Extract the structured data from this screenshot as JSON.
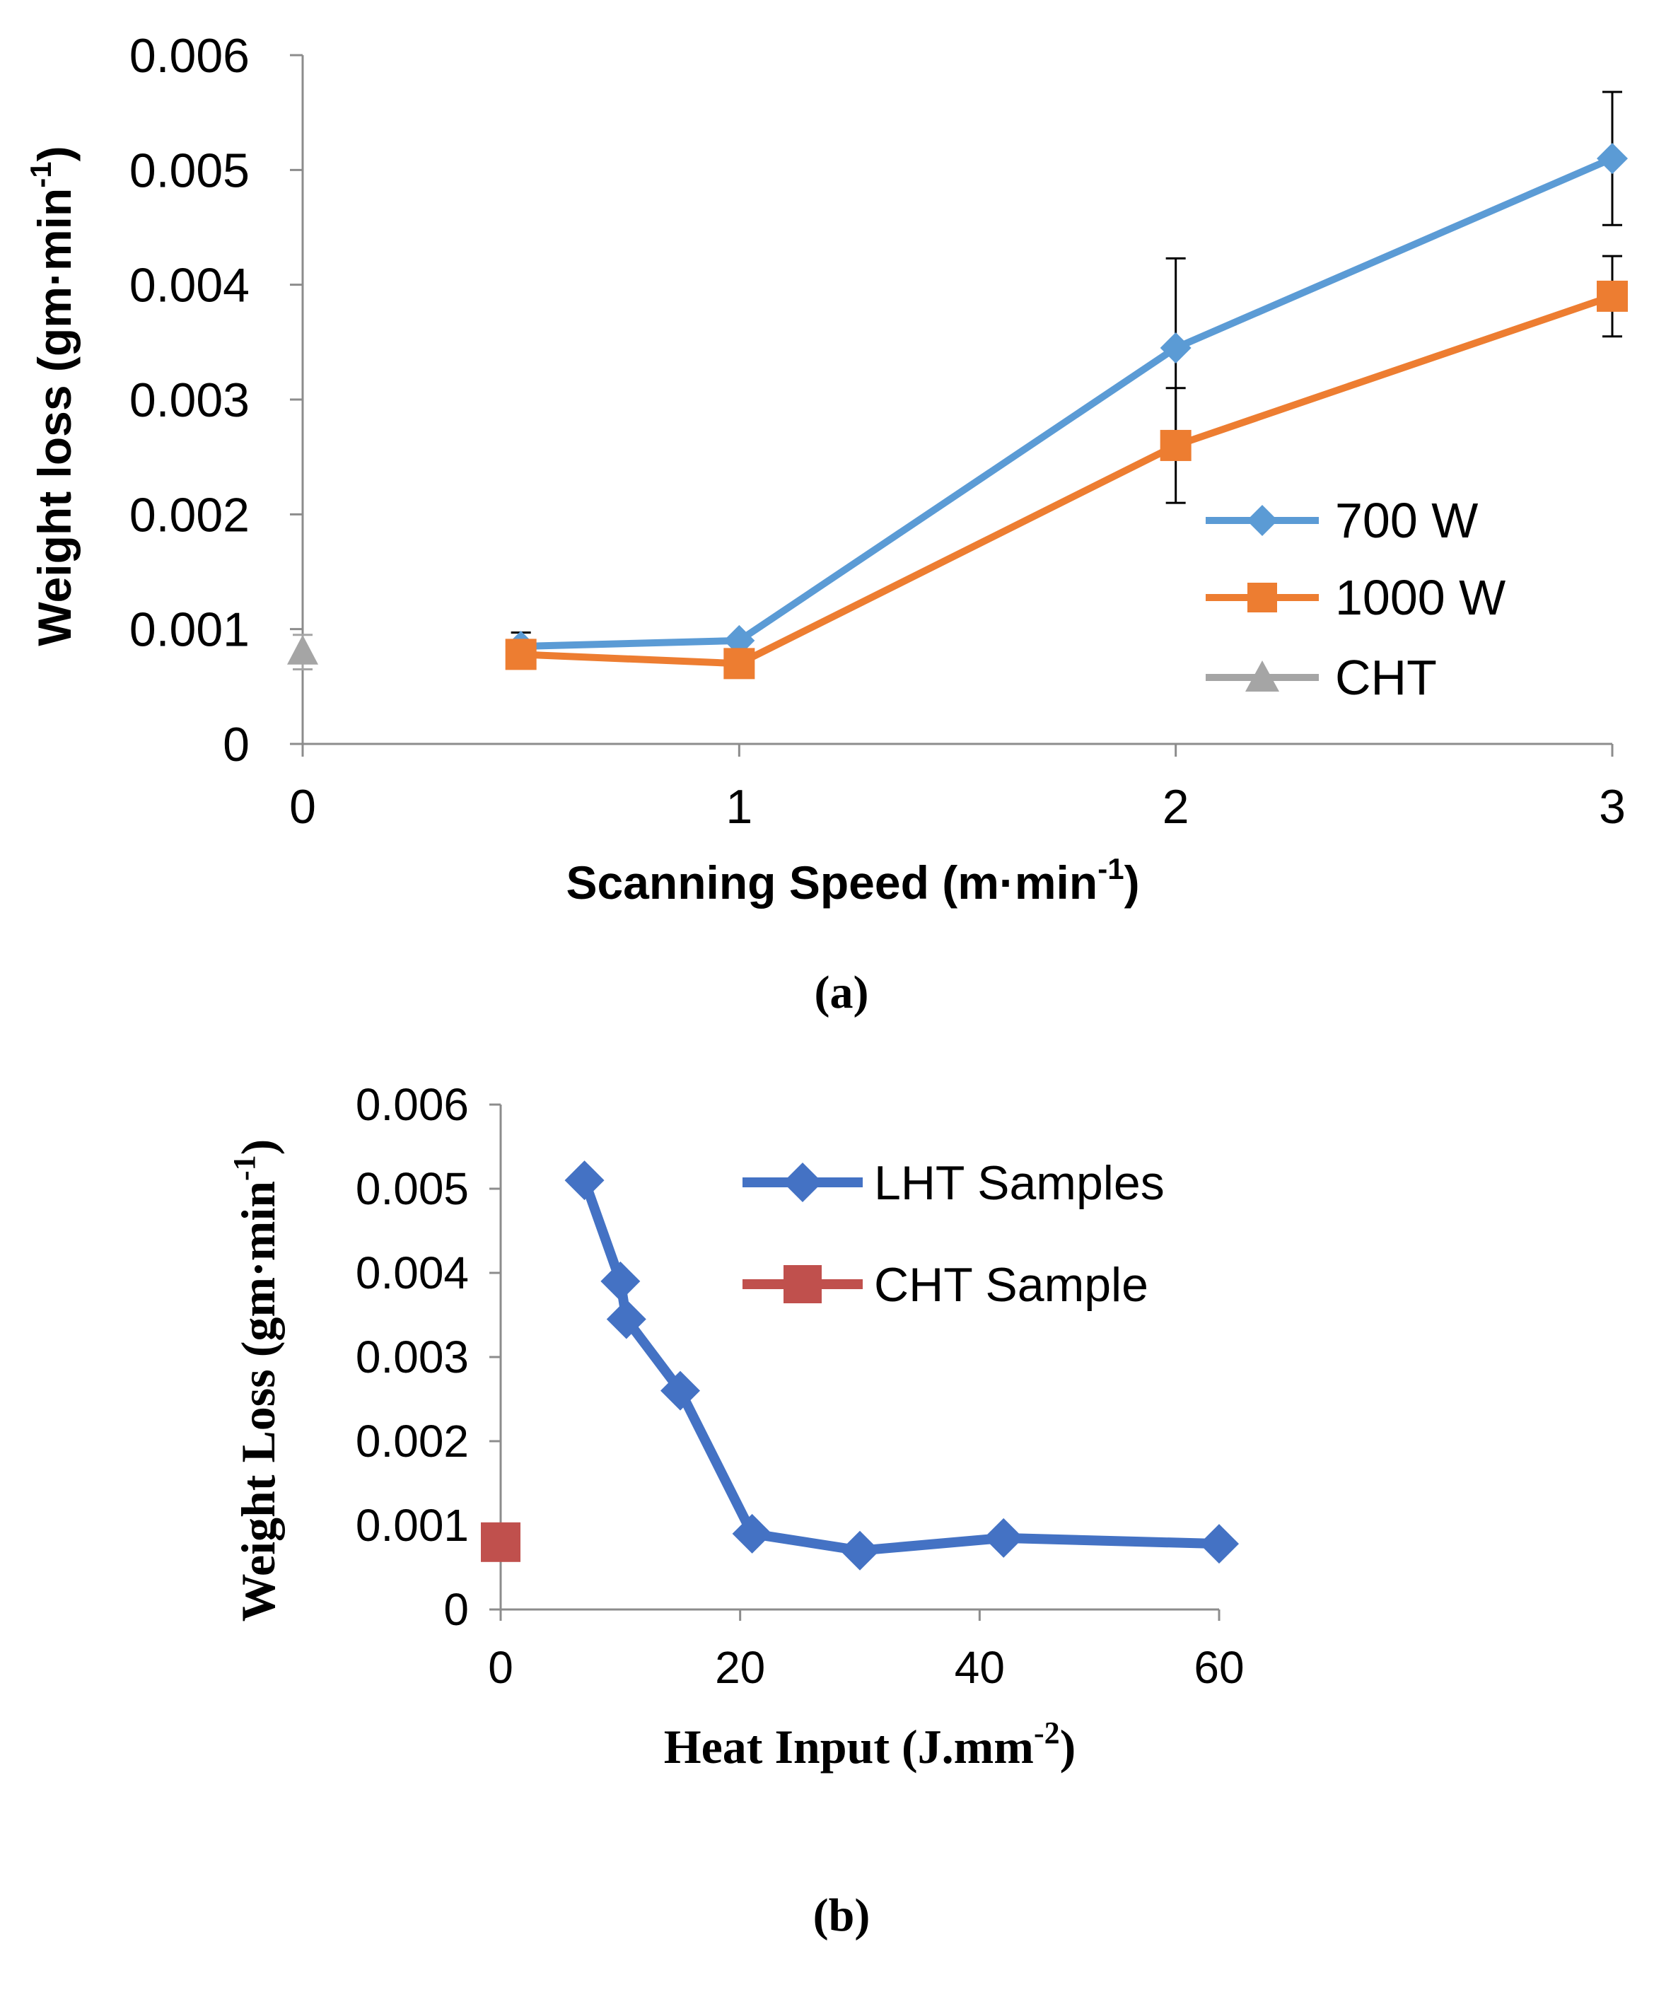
{
  "chart_data": [
    {
      "id": "a",
      "type": "line",
      "caption": "(a)",
      "xlabel_main": "Scanning Speed (m·min",
      "xlabel_sup": "-1",
      "xlabel_end": ")",
      "ylabel_main": "Weight loss (gm·min",
      "ylabel_sup": "-1",
      "ylabel_end": ")",
      "xlim": [
        0,
        3
      ],
      "ylim": [
        0,
        0.006
      ],
      "xticks": [
        0,
        1,
        2,
        3
      ],
      "xtick_labels": [
        "0",
        "1",
        "2",
        "3"
      ],
      "yticks": [
        0,
        0.001,
        0.002,
        0.003,
        0.004,
        0.005,
        0.006
      ],
      "ytick_labels": [
        "0",
        "0.001",
        "0.002",
        "0.003",
        "0.004",
        "0.005",
        "0.006"
      ],
      "legend_position": "right",
      "series": [
        {
          "name": "700 W",
          "color": "#5b9bd5",
          "marker": "diamond",
          "x": [
            0.5,
            1,
            2,
            3
          ],
          "y": [
            0.00085,
            0.0009,
            0.00345,
            0.0051
          ],
          "error": [
            0.00012,
            0,
            0.00078,
            0.00058
          ]
        },
        {
          "name": "1000 W",
          "color": "#ed7d31",
          "marker": "square",
          "x": [
            0.5,
            1,
            2,
            3
          ],
          "y": [
            0.00078,
            0.0007,
            0.0026,
            0.0039
          ],
          "error": [
            0,
            0,
            0.0005,
            0.00035
          ]
        },
        {
          "name": "CHT",
          "color": "#a5a5a5",
          "marker": "triangle",
          "x": [
            0
          ],
          "y": [
            0.0008
          ],
          "error": [
            0.00015
          ]
        }
      ]
    },
    {
      "id": "b",
      "type": "line",
      "caption": "(b)",
      "xlabel_main": "Heat Input (J.mm",
      "xlabel_sup": "-2",
      "xlabel_end": ")",
      "ylabel_main": "Weight Loss (gm·min",
      "ylabel_sup": "-1",
      "ylabel_end": ")",
      "xlim": [
        0,
        60
      ],
      "ylim": [
        0,
        0.006
      ],
      "xticks": [
        0,
        20,
        40,
        60
      ],
      "xtick_labels": [
        "0",
        "20",
        "40",
        "60"
      ],
      "yticks": [
        0,
        0.001,
        0.002,
        0.003,
        0.004,
        0.005,
        0.006
      ],
      "ytick_labels": [
        "0",
        "0.001",
        "0.002",
        "0.003",
        "0.004",
        "0.005",
        "0.006"
      ],
      "legend_position": "top-right",
      "series": [
        {
          "name": "LHT Samples",
          "color": "#4472c4",
          "marker": "diamond",
          "x": [
            7,
            10,
            10.5,
            15,
            21,
            30,
            42,
            60
          ],
          "y": [
            0.0051,
            0.0039,
            0.00345,
            0.0026,
            0.0009,
            0.0007,
            0.00085,
            0.00078
          ]
        },
        {
          "name": "CHT Sample",
          "color": "#c0504d",
          "marker": "square",
          "x": [
            0
          ],
          "y": [
            0.0008
          ]
        }
      ]
    }
  ]
}
